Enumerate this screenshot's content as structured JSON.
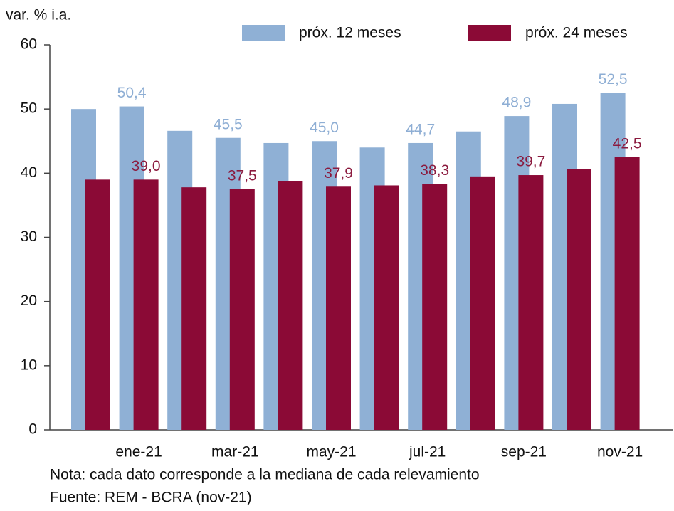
{
  "chart_data": {
    "type": "bar",
    "y_label": "var. % i.a.",
    "categories": [
      null,
      "ene-21",
      null,
      "mar-21",
      null,
      "may-21",
      null,
      "jul-21",
      null,
      "sep-21",
      null,
      "nov-21"
    ],
    "series": [
      {
        "name": "próx. 12 meses",
        "color": "#8fb0d5",
        "label_color": "#8eaed4",
        "values": [
          50.0,
          50.4,
          46.6,
          45.5,
          44.7,
          45.0,
          44.0,
          44.7,
          46.5,
          48.9,
          50.8,
          52.5
        ],
        "value_labels": [
          null,
          "50,4",
          null,
          "45,5",
          null,
          "45,0",
          null,
          "44,7",
          null,
          "48,9",
          null,
          "52,5"
        ]
      },
      {
        "name": "próx. 24 meses",
        "color": "#8b0a36",
        "label_color": "#8b1a3e",
        "values": [
          39.0,
          39.0,
          37.8,
          37.5,
          38.8,
          37.9,
          38.1,
          38.3,
          39.5,
          39.7,
          40.6,
          42.5
        ],
        "value_labels": [
          null,
          "39,0",
          null,
          "37,5",
          null,
          "37,9",
          null,
          "38,3",
          null,
          "39,7",
          null,
          "42,5"
        ]
      }
    ],
    "ylim": [
      0,
      60
    ],
    "yticks": [
      0,
      10,
      20,
      30,
      40,
      50,
      60
    ],
    "grid": false,
    "notes": [
      "Nota: cada dato corresponde a la mediana de cada relevamiento",
      "Fuente: REM - BCRA (nov-21)"
    ]
  }
}
